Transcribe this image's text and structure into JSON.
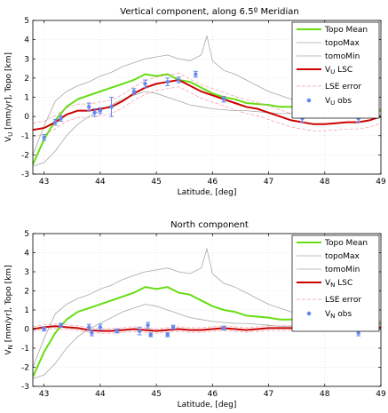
{
  "chart_data": [
    {
      "type": "line",
      "title": "Vertical component, along 6.5º Meridian",
      "xlabel": "Latitude, [deg]",
      "ylabel_main": "V",
      "ylabel_sub": "U",
      "ylabel_rest": " [mm/yr], Topo [km]",
      "xlim": [
        42.8,
        49
      ],
      "ylim": [
        -3,
        5
      ],
      "xticks": [
        43,
        44,
        45,
        46,
        47,
        48,
        49
      ],
      "yticks": [
        -3,
        -2,
        -1,
        0,
        1,
        2,
        3,
        4,
        5
      ],
      "grid": true,
      "legend_position": "top-right",
      "legend": [
        {
          "label": "Topo Mean",
          "style": "topo-mean"
        },
        {
          "label": "topoMax",
          "style": "topo-minmax"
        },
        {
          "label": "tomoMin",
          "style": "topo-minmax"
        },
        {
          "label_main": "V",
          "label_sub": "U",
          "label_rest": " LSC",
          "style": "lsc"
        },
        {
          "label": "LSE error",
          "style": "lse"
        },
        {
          "label_main": "V",
          "label_sub": "U",
          "label_rest": " obs",
          "style": "obs"
        }
      ],
      "colors": {
        "topo_mean": "#66dd11",
        "topo_minmax": "#a8a8a8",
        "lsc": "#cc0000",
        "lse": "#f09aa0",
        "obs": "#6688ee"
      },
      "series": {
        "topo_mean": {
          "x": [
            42.8,
            43.0,
            43.2,
            43.4,
            43.6,
            43.8,
            44.0,
            44.2,
            44.4,
            44.6,
            44.8,
            45.0,
            45.2,
            45.4,
            45.6,
            45.8,
            46.0,
            46.2,
            46.4,
            46.6,
            46.8,
            47.0,
            47.2,
            47.4,
            47.6,
            47.8,
            48.0,
            48.2,
            48.4,
            48.6,
            48.8,
            49.0
          ],
          "y": [
            -2.5,
            -1.2,
            -0.2,
            0.5,
            0.9,
            1.1,
            1.3,
            1.5,
            1.7,
            1.9,
            2.2,
            2.1,
            2.2,
            1.9,
            1.8,
            1.5,
            1.2,
            1.0,
            0.9,
            0.7,
            0.65,
            0.6,
            0.5,
            0.5,
            0.55,
            0.6,
            0.5,
            0.45,
            0.35,
            0.4,
            0.3,
            0.3
          ]
        },
        "topo_max": {
          "x": [
            42.8,
            43.0,
            43.2,
            43.4,
            43.6,
            43.8,
            44.0,
            44.2,
            44.4,
            44.6,
            44.8,
            45.0,
            45.2,
            45.4,
            45.6,
            45.8,
            45.9,
            46.0,
            46.2,
            46.4,
            46.6,
            46.8,
            47.0,
            47.2,
            47.4,
            47.6,
            47.8,
            48.0,
            48.2,
            48.4,
            48.6,
            48.8,
            49.0
          ],
          "y": [
            -2.0,
            -0.5,
            0.8,
            1.3,
            1.6,
            1.8,
            2.1,
            2.3,
            2.6,
            2.8,
            3.0,
            3.1,
            3.2,
            3.0,
            2.9,
            3.2,
            4.2,
            2.9,
            2.4,
            2.2,
            1.9,
            1.6,
            1.3,
            1.1,
            0.9,
            0.8,
            0.9,
            0.8,
            0.7,
            0.6,
            0.55,
            0.5,
            0.4
          ]
        },
        "topo_min": {
          "x": [
            42.8,
            43.0,
            43.2,
            43.4,
            43.6,
            43.8,
            44.0,
            44.2,
            44.4,
            44.6,
            44.8,
            45.0,
            45.2,
            45.4,
            45.6,
            45.8,
            46.0,
            46.2,
            46.4,
            46.6,
            46.8,
            47.0,
            47.2,
            47.4,
            47.6,
            47.8,
            48.0,
            48.2,
            48.4,
            48.6,
            48.8,
            49.0
          ],
          "y": [
            -2.6,
            -2.4,
            -1.8,
            -1.0,
            -0.4,
            0.0,
            0.3,
            0.6,
            0.9,
            1.1,
            1.3,
            1.2,
            1.0,
            0.8,
            0.6,
            0.5,
            0.4,
            0.35,
            0.3,
            0.3,
            0.25,
            0.2,
            0.15,
            0.15,
            0.2,
            0.15,
            0.1,
            0.1,
            0.1,
            0.1,
            0.05,
            0.05
          ]
        },
        "lsc": {
          "x": [
            42.8,
            43.0,
            43.2,
            43.4,
            43.6,
            43.8,
            44.0,
            44.2,
            44.4,
            44.6,
            44.8,
            45.0,
            45.2,
            45.4,
            45.6,
            45.8,
            46.0,
            46.2,
            46.4,
            46.6,
            46.8,
            47.0,
            47.2,
            47.4,
            47.6,
            47.8,
            48.0,
            48.2,
            48.4,
            48.6,
            48.8,
            49.0
          ],
          "y": [
            -0.7,
            -0.6,
            -0.3,
            0.1,
            0.3,
            0.3,
            0.4,
            0.5,
            0.8,
            1.2,
            1.5,
            1.7,
            1.8,
            1.9,
            1.6,
            1.3,
            1.1,
            0.9,
            0.7,
            0.5,
            0.4,
            0.2,
            0.0,
            -0.2,
            -0.3,
            -0.4,
            -0.4,
            -0.35,
            -0.3,
            -0.3,
            -0.2,
            0.0
          ]
        },
        "lse_upper_offset": 0.35,
        "obs": {
          "x": [
            43.0,
            43.2,
            43.3,
            43.8,
            43.9,
            44.0,
            44.2,
            44.6,
            44.8,
            45.2,
            45.4,
            45.7,
            46.2,
            47.6,
            48.6
          ],
          "y": [
            -1.1,
            -0.3,
            -0.1,
            0.5,
            0.2,
            0.3,
            0.5,
            1.3,
            1.7,
            1.8,
            1.9,
            2.2,
            0.9,
            -0.1,
            -0.1
          ],
          "err": [
            0.15,
            0.15,
            0.15,
            0.2,
            0.2,
            0.15,
            0.5,
            0.15,
            0.2,
            0.2,
            0.15,
            0.15,
            0.15,
            0.2,
            0.2
          ]
        }
      }
    },
    {
      "type": "line",
      "title": "North component",
      "xlabel": "Latitude, [deg]",
      "ylabel_main": "V",
      "ylabel_sub": "N",
      "ylabel_rest": " [mm/yr], Topo [km]",
      "xlim": [
        42.8,
        49
      ],
      "ylim": [
        -3,
        5
      ],
      "xticks": [
        43,
        44,
        45,
        46,
        47,
        48,
        49
      ],
      "yticks": [
        -3,
        -2,
        -1,
        0,
        1,
        2,
        3,
        4,
        5
      ],
      "grid": true,
      "legend_position": "top-right",
      "legend": [
        {
          "label": "Topo Mean",
          "style": "topo-mean"
        },
        {
          "label": "topoMax",
          "style": "topo-minmax"
        },
        {
          "label": "tomoMin",
          "style": "topo-minmax"
        },
        {
          "label_main": "V",
          "label_sub": "N",
          "label_rest": " LSC",
          "style": "lsc"
        },
        {
          "label": "LSE error",
          "style": "lse"
        },
        {
          "label_main": "V",
          "label_sub": "N",
          "label_rest": " obs",
          "style": "obs"
        }
      ],
      "colors": {
        "topo_mean": "#66dd11",
        "topo_minmax": "#a8a8a8",
        "lsc": "#cc0000",
        "lse": "#f09aa0",
        "obs": "#6688ee"
      },
      "series": {
        "topo_mean": {
          "x": [
            42.8,
            43.0,
            43.2,
            43.4,
            43.6,
            43.8,
            44.0,
            44.2,
            44.4,
            44.6,
            44.8,
            45.0,
            45.2,
            45.4,
            45.6,
            45.8,
            46.0,
            46.2,
            46.4,
            46.6,
            46.8,
            47.0,
            47.2,
            47.4,
            47.6,
            47.8,
            48.0,
            48.2,
            48.4,
            48.6,
            48.8,
            49.0
          ],
          "y": [
            -2.5,
            -1.2,
            -0.2,
            0.5,
            0.9,
            1.1,
            1.3,
            1.5,
            1.7,
            1.9,
            2.2,
            2.1,
            2.2,
            1.9,
            1.8,
            1.5,
            1.2,
            1.0,
            0.9,
            0.7,
            0.65,
            0.6,
            0.5,
            0.5,
            0.55,
            0.6,
            0.5,
            0.45,
            0.35,
            0.4,
            0.3,
            0.3
          ]
        },
        "topo_max": {
          "x": [
            42.8,
            43.0,
            43.2,
            43.4,
            43.6,
            43.8,
            44.0,
            44.2,
            44.4,
            44.6,
            44.8,
            45.0,
            45.2,
            45.4,
            45.6,
            45.8,
            45.9,
            46.0,
            46.2,
            46.4,
            46.6,
            46.8,
            47.0,
            47.2,
            47.4,
            47.6,
            47.8,
            48.0,
            48.2,
            48.4,
            48.6,
            48.8,
            49.0
          ],
          "y": [
            -2.0,
            -0.5,
            0.8,
            1.3,
            1.6,
            1.8,
            2.1,
            2.3,
            2.6,
            2.8,
            3.0,
            3.1,
            3.2,
            3.0,
            2.9,
            3.2,
            4.2,
            2.9,
            2.4,
            2.2,
            1.9,
            1.6,
            1.3,
            1.1,
            0.9,
            0.8,
            0.9,
            0.8,
            0.7,
            0.6,
            0.55,
            0.5,
            0.4
          ]
        },
        "topo_min": {
          "x": [
            42.8,
            43.0,
            43.2,
            43.4,
            43.6,
            43.8,
            44.0,
            44.2,
            44.4,
            44.6,
            44.8,
            45.0,
            45.2,
            45.4,
            45.6,
            45.8,
            46.0,
            46.2,
            46.4,
            46.6,
            46.8,
            47.0,
            47.2,
            47.4,
            47.6,
            47.8,
            48.0,
            48.2,
            48.4,
            48.6,
            48.8,
            49.0
          ],
          "y": [
            -2.6,
            -2.4,
            -1.8,
            -1.0,
            -0.4,
            0.0,
            0.3,
            0.6,
            0.9,
            1.1,
            1.3,
            1.2,
            1.0,
            0.8,
            0.6,
            0.5,
            0.4,
            0.35,
            0.3,
            0.3,
            0.25,
            0.2,
            0.15,
            0.15,
            0.2,
            0.15,
            0.1,
            0.1,
            0.1,
            0.1,
            0.05,
            0.05
          ]
        },
        "lsc": {
          "x": [
            42.8,
            43.0,
            43.2,
            43.4,
            43.6,
            43.8,
            44.0,
            44.2,
            44.4,
            44.6,
            44.8,
            45.0,
            45.2,
            45.4,
            45.6,
            45.8,
            46.0,
            46.2,
            46.4,
            46.6,
            46.8,
            47.0,
            47.2,
            47.4,
            47.6,
            47.8,
            48.0,
            48.2,
            48.4,
            48.6,
            48.8,
            49.0
          ],
          "y": [
            0.0,
            0.1,
            0.15,
            0.1,
            0.05,
            -0.05,
            -0.1,
            -0.1,
            -0.05,
            0.0,
            -0.05,
            -0.1,
            -0.05,
            0.0,
            -0.05,
            -0.05,
            0.0,
            0.05,
            0.0,
            -0.05,
            0.0,
            0.05,
            0.05,
            0.05,
            0.1,
            0.15,
            0.1,
            0.1,
            0.05,
            0.0,
            0.0,
            0.1
          ]
        },
        "lse_upper_offset": 0.12,
        "obs": {
          "x": [
            43.0,
            43.3,
            43.8,
            43.85,
            44.0,
            44.3,
            44.7,
            44.85,
            44.9,
            45.2,
            45.3,
            46.2,
            47.6,
            48.6
          ],
          "y": [
            0.0,
            0.2,
            0.1,
            -0.2,
            0.1,
            -0.1,
            -0.1,
            0.2,
            -0.3,
            -0.3,
            0.1,
            0.05,
            0.2,
            -0.2
          ],
          "err": [
            0.1,
            0.1,
            0.15,
            0.15,
            0.15,
            0.1,
            0.2,
            0.15,
            0.1,
            0.1,
            0.1,
            0.1,
            0.15,
            0.15
          ]
        }
      }
    }
  ]
}
